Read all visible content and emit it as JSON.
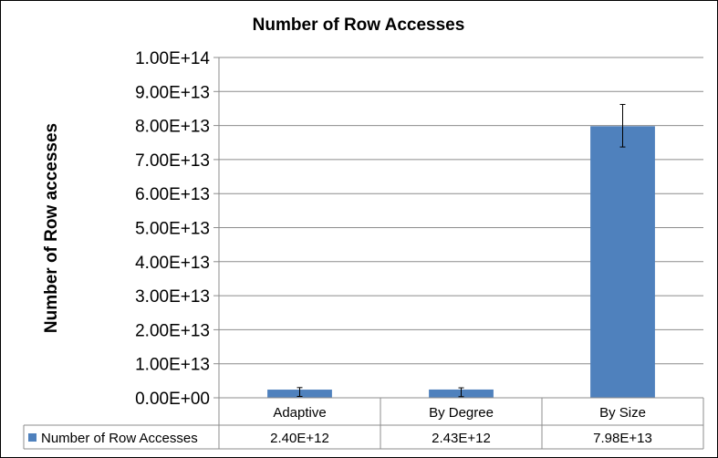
{
  "chart_data": {
    "type": "bar",
    "title": "Number of Row Accesses",
    "ylabel": "Number of Row accesses",
    "xlabel": "",
    "categories": [
      "Adaptive",
      "By Degree",
      "By Size"
    ],
    "series": [
      {
        "name": "Number of Row Accesses",
        "values": [
          2400000000000.0,
          2430000000000.0,
          79800000000000.0
        ],
        "error_low": [
          2000000000000.0,
          2100000000000.0,
          6100000000000.0
        ],
        "error_high": [
          600000000000.0,
          500000000000.0,
          6400000000000.0
        ],
        "color": "#4f81bd",
        "table_labels": [
          "2.40E+12",
          "2.43E+12",
          "7.98E+13"
        ]
      }
    ],
    "ylim": [
      0,
      100000000000000.0
    ],
    "yticks": [
      0,
      10000000000000.0,
      20000000000000.0,
      30000000000000.0,
      40000000000000.0,
      50000000000000.0,
      60000000000000.0,
      70000000000000.0,
      80000000000000.0,
      90000000000000.0,
      100000000000000.0
    ],
    "ytick_labels": [
      "0.00E+00",
      "1.00E+13",
      "2.00E+13",
      "3.00E+13",
      "4.00E+13",
      "5.00E+13",
      "6.00E+13",
      "7.00E+13",
      "8.00E+13",
      "9.00E+13",
      "1.00E+14"
    ],
    "grid": true,
    "legend": "data-table"
  }
}
